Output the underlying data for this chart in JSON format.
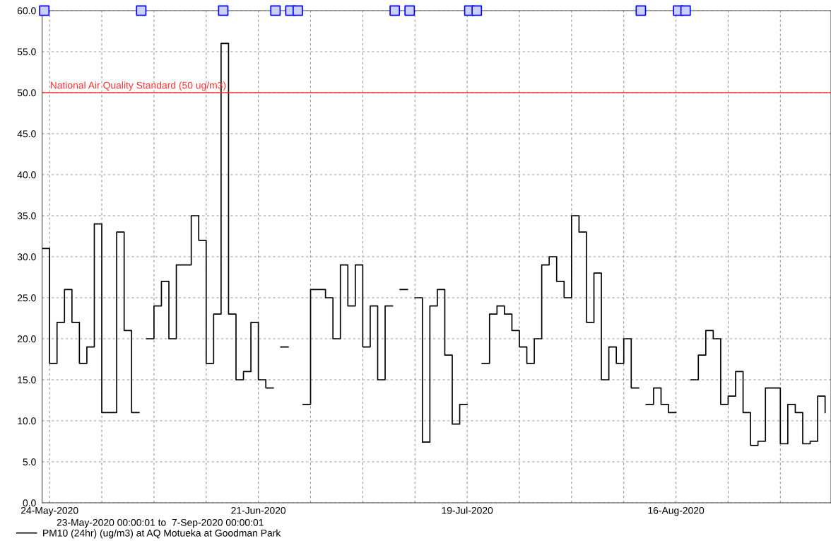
{
  "chart_data": {
    "type": "step",
    "x": [
      "2020-05-23",
      "2020-05-24",
      "2020-05-25",
      "2020-05-26",
      "2020-05-27",
      "2020-05-28",
      "2020-05-29",
      "2020-05-30",
      "2020-05-31",
      "2020-06-01",
      "2020-06-02",
      "2020-06-03",
      "2020-06-04",
      "2020-06-05",
      "2020-06-06",
      "2020-06-07",
      "2020-06-08",
      "2020-06-09",
      "2020-06-10",
      "2020-06-11",
      "2020-06-12",
      "2020-06-13",
      "2020-06-14",
      "2020-06-15",
      "2020-06-16",
      "2020-06-17",
      "2020-06-18",
      "2020-06-19",
      "2020-06-20",
      "2020-06-21",
      "2020-06-22",
      "2020-06-23",
      "2020-06-24",
      "2020-06-25",
      "2020-06-26",
      "2020-06-27",
      "2020-06-28",
      "2020-06-29",
      "2020-06-30",
      "2020-07-01",
      "2020-07-02",
      "2020-07-03",
      "2020-07-04",
      "2020-07-05",
      "2020-07-06",
      "2020-07-07",
      "2020-07-08",
      "2020-07-09",
      "2020-07-10",
      "2020-07-11",
      "2020-07-12",
      "2020-07-13",
      "2020-07-14",
      "2020-07-15",
      "2020-07-16",
      "2020-07-17",
      "2020-07-18",
      "2020-07-19",
      "2020-07-20",
      "2020-07-21",
      "2020-07-22",
      "2020-07-23",
      "2020-07-24",
      "2020-07-25",
      "2020-07-26",
      "2020-07-27",
      "2020-07-28",
      "2020-07-29",
      "2020-07-30",
      "2020-07-31",
      "2020-08-01",
      "2020-08-02",
      "2020-08-03",
      "2020-08-04",
      "2020-08-05",
      "2020-08-06",
      "2020-08-07",
      "2020-08-08",
      "2020-08-09",
      "2020-08-10",
      "2020-08-11",
      "2020-08-12",
      "2020-08-13",
      "2020-08-14",
      "2020-08-15",
      "2020-08-16",
      "2020-08-17",
      "2020-08-18",
      "2020-08-19",
      "2020-08-20",
      "2020-08-21",
      "2020-08-22",
      "2020-08-23",
      "2020-08-24",
      "2020-08-25",
      "2020-08-26",
      "2020-08-27",
      "2020-08-28",
      "2020-08-29",
      "2020-08-30",
      "2020-08-31",
      "2020-09-01",
      "2020-09-02",
      "2020-09-03",
      "2020-09-04",
      "2020-09-05"
    ],
    "series": [
      {
        "name": "PM10 (24hr) (ug/m3) at AQ Motueka at Goodman Park",
        "color": "#000000",
        "values": [
          31,
          17,
          22,
          26,
          22,
          17,
          19,
          34,
          11,
          11,
          33,
          21,
          11,
          null,
          20,
          24,
          27,
          20,
          29,
          29,
          35,
          32,
          17,
          23,
          56,
          23,
          15,
          16,
          22,
          15,
          14,
          null,
          19,
          null,
          null,
          12,
          26,
          26,
          25,
          20,
          29,
          24,
          29,
          19,
          24,
          15,
          24,
          null,
          26,
          null,
          25,
          7.4,
          24,
          26,
          18,
          9.6,
          12,
          null,
          null,
          17,
          23,
          24,
          23,
          21,
          19,
          17,
          20,
          29,
          30,
          27,
          25,
          35,
          33,
          22,
          28,
          15,
          19,
          17,
          20,
          14,
          null,
          12,
          14,
          12,
          11,
          null,
          null,
          15,
          18,
          21,
          20,
          12,
          13,
          16,
          11,
          7,
          7.5,
          14,
          14,
          7.2,
          12,
          11,
          7.2,
          7.5,
          13,
          11
        ]
      },
      {
        "type": "scatter",
        "color": "#0000ff",
        "marker": "square",
        "x": [
          "2020-05-23T07:00",
          "2020-06-05T07:00",
          "2020-06-16T07:00",
          "2020-06-23T07:00",
          "2020-06-25T07:00",
          "2020-06-26T07:00",
          "2020-07-09T07:00",
          "2020-07-11T07:00",
          "2020-07-19T07:00",
          "2020-07-20T07:00",
          "2020-08-11T07:00",
          "2020-08-16T07:00",
          "2020-08-17T07:00"
        ],
        "values": [
          60,
          60,
          60,
          60,
          60,
          60,
          60,
          60,
          60,
          60,
          60,
          60,
          60
        ]
      }
    ],
    "xlim": [
      "2020-05-23T00:00",
      "2020-09-05T19:00"
    ],
    "xticks": [
      {
        "value": "2020-05-24",
        "label": "24-May-2020"
      },
      {
        "value": "2020-05-31",
        "label": null
      },
      {
        "value": "2020-06-07",
        "label": null
      },
      {
        "value": "2020-06-14",
        "label": null
      },
      {
        "value": "2020-06-21",
        "label": "21-Jun-2020"
      },
      {
        "value": "2020-06-28",
        "label": null
      },
      {
        "value": "2020-07-05",
        "label": null
      },
      {
        "value": "2020-07-12",
        "label": null
      },
      {
        "value": "2020-07-19",
        "label": "19-Jul-2020"
      },
      {
        "value": "2020-07-26",
        "label": null
      },
      {
        "value": "2020-08-02",
        "label": null
      },
      {
        "value": "2020-08-09",
        "label": null
      },
      {
        "value": "2020-08-16",
        "label": "16-Aug-2020"
      },
      {
        "value": "2020-08-23",
        "label": null
      },
      {
        "value": "2020-08-30",
        "label": null
      }
    ],
    "ylim": [
      0,
      60
    ],
    "yticks": [
      {
        "value": 0,
        "label": "0.0"
      },
      {
        "value": 5,
        "label": "5.0"
      },
      {
        "value": 10,
        "label": "10.0"
      },
      {
        "value": 15,
        "label": "15.0"
      },
      {
        "value": 20,
        "label": "20.0"
      },
      {
        "value": 25,
        "label": "25.0"
      },
      {
        "value": 30,
        "label": "30.0"
      },
      {
        "value": 35,
        "label": "35.0"
      },
      {
        "value": 40,
        "label": "40.0"
      },
      {
        "value": 45,
        "label": "45.0"
      },
      {
        "value": 50,
        "label": "50.0"
      },
      {
        "value": 55,
        "label": "55.0"
      },
      {
        "value": 60,
        "label": "60.0"
      }
    ],
    "ref_lines": [
      {
        "axis": "y",
        "value": 50,
        "label": "National Air Quality Standard (50 ug/m3)",
        "color": "#ff3333"
      }
    ],
    "annotations": [
      "23-May-2020 00:00:01 to  7-Sep-2020 00:00:01"
    ],
    "grid": true,
    "legend": "bottom left",
    "line_style": "solid"
  }
}
